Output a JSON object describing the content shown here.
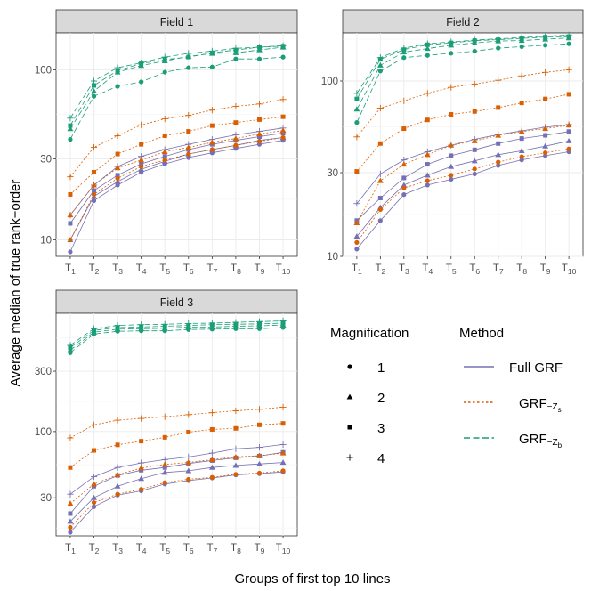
{
  "chart_data": {
    "type": "line",
    "ylabel": "Average median of true rank−order",
    "xlabel": "Groups of first top 10 lines",
    "y_scale": "log10",
    "categories": [
      {
        "base": "T",
        "sub": "1"
      },
      {
        "base": "T",
        "sub": "2"
      },
      {
        "base": "T",
        "sub": "3"
      },
      {
        "base": "T",
        "sub": "4"
      },
      {
        "base": "T",
        "sub": "5"
      },
      {
        "base": "T",
        "sub": "6"
      },
      {
        "base": "T",
        "sub": "7"
      },
      {
        "base": "T",
        "sub": "8"
      },
      {
        "base": "T",
        "sub": "9"
      },
      {
        "base": "T",
        "sub": "10"
      }
    ],
    "methods": [
      {
        "key": "full",
        "label": "Full GRF",
        "color": "#7570b3",
        "dash": "none"
      },
      {
        "key": "zs",
        "label": "GRF",
        "sub": "−Z",
        "subsub": "s",
        "color": "#d95f02",
        "dash": "2,2"
      },
      {
        "key": "zb",
        "label": "GRF",
        "sub": "−Z",
        "subsub": "b",
        "color": "#1b9e77",
        "dash": "6,3"
      }
    ],
    "magnifications": [
      {
        "label": "1",
        "shape": "circle"
      },
      {
        "label": "2",
        "shape": "triangle"
      },
      {
        "label": "3",
        "shape": "square"
      },
      {
        "label": "4",
        "shape": "plus"
      }
    ],
    "legend": {
      "magnification_title": "Magnification",
      "method_title": "Method",
      "placement": "bottom-right"
    },
    "panels": [
      {
        "title": "Field 1",
        "ylim": [
          8,
          165
        ],
        "yticks": [
          10,
          30,
          100
        ],
        "series": {
          "full": {
            "1": [
              8.5,
              17,
              21,
              25,
              28,
              30.5,
              32.5,
              34.5,
              36.5,
              38.5
            ],
            "2": [
              10,
              18,
              22,
              26,
              29,
              32,
              34,
              36,
              38.5,
              40
            ],
            "3": [
              12.5,
              19.5,
              24,
              28,
              31,
              34,
              36.5,
              38.5,
              40.5,
              42.5
            ],
            "4": [
              14,
              21,
              27,
              31,
              34,
              36.5,
              39,
              41.5,
              43.5,
              45.5
            ]
          },
          "zs": {
            "1": [
              10,
              18.5,
              23,
              27,
              29.5,
              32,
              34,
              36,
              38,
              40
            ],
            "2": [
              14,
              21,
              26.5,
              29.5,
              33,
              35,
              37.5,
              39.5,
              42,
              44
            ],
            "3": [
              18.5,
              25,
              32,
              36.5,
              41,
              43.5,
              47,
              49,
              51,
              53
            ],
            "4": [
              23.5,
              35,
              41,
              47.5,
              51.5,
              54,
              58,
              61,
              63,
              67
            ]
          },
          "zb": {
            "1": [
              39,
              70,
              80,
              85,
              97,
              103,
              104,
              116,
              116,
              119
            ],
            "2": [
              45,
              75,
              97,
              106,
              113,
              120,
              125,
              126,
              131,
              136
            ],
            "3": [
              47,
              81,
              99,
              109,
              115,
              119,
              126,
              131,
              136,
              138
            ],
            "4": [
              52,
              86,
              103,
              110,
              119,
              125,
              129,
              134,
              136,
              139
            ]
          }
        }
      },
      {
        "title": "Field 2",
        "ylim": [
          10,
          188
        ],
        "yticks": [
          10,
          30,
          100
        ],
        "series": {
          "full": {
            "1": [
              11,
              16,
              22.5,
              25.5,
              27.5,
              29.5,
              33,
              35.5,
              37.5,
              39.5
            ],
            "2": [
              13,
              19,
              25.5,
              29,
              32.5,
              35,
              38,
              40,
              42.5,
              45.5
            ],
            "3": [
              16,
              21.5,
              28,
              33.5,
              37.5,
              40.5,
              44,
              47,
              49,
              51.5
            ],
            "4": [
              20,
              29.5,
              35.5,
              39.5,
              43,
              46.5,
              49.5,
              52,
              54.5,
              56.5
            ]
          },
          "zs": {
            "1": [
              12,
              18.5,
              24.5,
              27,
              29,
              31.5,
              34.5,
              37,
              39,
              41
            ],
            "2": [
              15.5,
              27,
              33.5,
              38,
              43,
              45.5,
              49,
              51.5,
              53.5,
              56
            ],
            "3": [
              30.5,
              44,
              53.5,
              60,
              64.5,
              67,
              70.5,
              75,
              79,
              84
            ],
            "4": [
              48,
              70,
              77,
              85,
              92,
              96,
              101,
              107,
              112,
              116
            ]
          },
          "zb": {
            "1": [
              58,
              114,
              136,
              140,
              144,
              148,
              154,
              157,
              160,
              163
            ],
            "2": [
              69,
              123,
              146,
              153,
              160,
              165,
              169,
              170,
              173,
              176
            ],
            "3": [
              79,
              133,
              151,
              161,
              165,
              170,
              172,
              175,
              178,
              179
            ],
            "4": [
              85,
              136,
              154,
              163,
              167,
              171,
              174,
              177,
              180,
              183
            ]
          }
        }
      },
      {
        "title": "Field 3",
        "ylim": [
          15,
          860
        ],
        "yticks": [
          30,
          100,
          300
        ],
        "series": {
          "full": {
            "1": [
              16,
              25.5,
              31.5,
              34,
              38.5,
              41,
              43,
              45.5,
              46.5,
              48
            ],
            "2": [
              19.5,
              30,
              37,
              42.5,
              47.5,
              49,
              52,
              54,
              55.5,
              57
            ],
            "3": [
              22.5,
              37,
              45,
              49.5,
              52,
              56,
              59,
              62,
              64,
              68.5
            ],
            "4": [
              32,
              44,
              52,
              56.5,
              60,
              63,
              67.5,
              73,
              75,
              79
            ]
          },
          "zs": {
            "1": [
              17.5,
              27.5,
              32,
              35,
              39.5,
              42,
              43.5,
              46,
              47,
              49
            ],
            "2": [
              27,
              38.5,
              45.5,
              51.5,
              55,
              57,
              60,
              63,
              64.5,
              67.5
            ],
            "3": [
              52,
              71,
              78.5,
              84,
              90,
              99,
              104,
              106,
              113,
              116
            ],
            "4": [
              89,
              113,
              123,
              127,
              131,
              136,
              141,
              146,
              150,
              156
            ]
          },
          "zb": {
            "1": [
              420,
              590,
              620,
              625,
              625,
              640,
              645,
              650,
              650,
              665
            ],
            "2": [
              440,
              610,
              645,
              650,
              655,
              670,
              670,
              680,
              685,
              695
            ],
            "3": [
              460,
              630,
              665,
              670,
              680,
              690,
              700,
              705,
              710,
              720
            ],
            "4": [
              480,
              650,
              690,
              700,
              705,
              715,
              720,
              730,
              740,
              750
            ]
          }
        }
      }
    ]
  }
}
